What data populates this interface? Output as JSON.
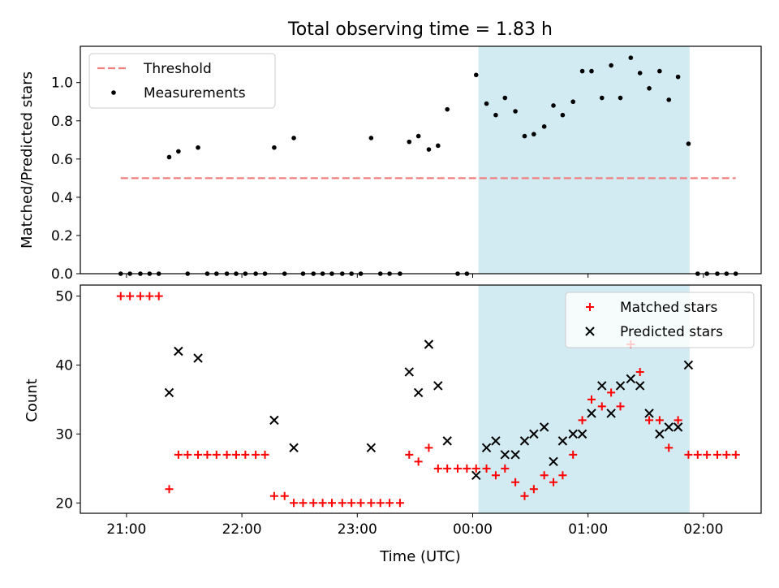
{
  "chart_data": {
    "title": "Total observing time = 1.83 h",
    "xlabel": "Time (UTC)",
    "x_ticks": [
      "21:00",
      "22:00",
      "23:00",
      "00:00",
      "01:00",
      "02:00"
    ],
    "x_range_hours": [
      20.6,
      26.5
    ],
    "highlight_span_hours": [
      24.05,
      25.88
    ],
    "highlight_color": "#add8e6",
    "panels": [
      {
        "type": "scatter",
        "ylabel": "Matched/Predicted stars",
        "ylim": [
          0,
          1.19
        ],
        "yticks": [
          0.0,
          0.2,
          0.4,
          0.6,
          0.8,
          1.0
        ],
        "legend": "top-left",
        "threshold": {
          "name": "Threshold",
          "value": 0.5,
          "x_start": 20.95,
          "x_end": 26.28,
          "color": "#f08080",
          "style": "dashed"
        },
        "series": [
          {
            "name": "Measurements",
            "color": "#000000",
            "marker": "dot",
            "points": [
              [
                20.95,
                0
              ],
              [
                21.03,
                0
              ],
              [
                21.12,
                0
              ],
              [
                21.2,
                0
              ],
              [
                21.28,
                0
              ],
              [
                21.37,
                0.61
              ],
              [
                21.45,
                0.64
              ],
              [
                21.53,
                0
              ],
              [
                21.62,
                0.66
              ],
              [
                21.7,
                0
              ],
              [
                21.78,
                0
              ],
              [
                21.87,
                0
              ],
              [
                21.95,
                0
              ],
              [
                22.03,
                0
              ],
              [
                22.12,
                0
              ],
              [
                22.2,
                0
              ],
              [
                22.28,
                0.66
              ],
              [
                22.37,
                0
              ],
              [
                22.45,
                0.71
              ],
              [
                22.53,
                0
              ],
              [
                22.62,
                0
              ],
              [
                22.7,
                0
              ],
              [
                22.78,
                0
              ],
              [
                22.87,
                0
              ],
              [
                22.95,
                0
              ],
              [
                23.03,
                0
              ],
              [
                23.12,
                0.71
              ],
              [
                23.2,
                0
              ],
              [
                23.28,
                0
              ],
              [
                23.37,
                0
              ],
              [
                23.45,
                0.69
              ],
              [
                23.53,
                0.72
              ],
              [
                23.62,
                0.65
              ],
              [
                23.7,
                0.67
              ],
              [
                23.78,
                0.86
              ],
              [
                23.87,
                0
              ],
              [
                23.95,
                0
              ],
              [
                24.03,
                1.04
              ],
              [
                24.12,
                0.89
              ],
              [
                24.2,
                0.83
              ],
              [
                24.28,
                0.92
              ],
              [
                24.37,
                0.85
              ],
              [
                24.45,
                0.72
              ],
              [
                24.53,
                0.73
              ],
              [
                24.62,
                0.77
              ],
              [
                24.7,
                0.88
              ],
              [
                24.78,
                0.83
              ],
              [
                24.87,
                0.9
              ],
              [
                24.95,
                1.06
              ],
              [
                25.03,
                1.06
              ],
              [
                25.12,
                0.92
              ],
              [
                25.2,
                1.09
              ],
              [
                25.28,
                0.92
              ],
              [
                25.37,
                1.13
              ],
              [
                25.45,
                1.05
              ],
              [
                25.53,
                0.97
              ],
              [
                25.62,
                1.06
              ],
              [
                25.7,
                0.91
              ],
              [
                25.78,
                1.03
              ],
              [
                25.87,
                0.68
              ],
              [
                25.95,
                0
              ],
              [
                26.03,
                0
              ],
              [
                26.12,
                0
              ],
              [
                26.2,
                0
              ],
              [
                26.28,
                0
              ]
            ]
          }
        ]
      },
      {
        "type": "scatter",
        "ylabel": "Count",
        "ylim": [
          18.5,
          51.6
        ],
        "yticks": [
          20,
          30,
          40,
          50
        ],
        "legend": "top-right",
        "series": [
          {
            "name": "Matched stars",
            "color": "#ff0000",
            "marker": "plus",
            "points": [
              [
                20.95,
                50
              ],
              [
                21.03,
                50
              ],
              [
                21.12,
                50
              ],
              [
                21.2,
                50
              ],
              [
                21.28,
                50
              ],
              [
                21.37,
                22
              ],
              [
                21.45,
                27
              ],
              [
                21.53,
                27
              ],
              [
                21.62,
                27
              ],
              [
                21.7,
                27
              ],
              [
                21.78,
                27
              ],
              [
                21.87,
                27
              ],
              [
                21.95,
                27
              ],
              [
                22.03,
                27
              ],
              [
                22.12,
                27
              ],
              [
                22.2,
                27
              ],
              [
                22.28,
                21
              ],
              [
                22.37,
                21
              ],
              [
                22.45,
                20
              ],
              [
                22.53,
                20
              ],
              [
                22.62,
                20
              ],
              [
                22.7,
                20
              ],
              [
                22.78,
                20
              ],
              [
                22.87,
                20
              ],
              [
                22.95,
                20
              ],
              [
                23.03,
                20
              ],
              [
                23.12,
                20
              ],
              [
                23.2,
                20
              ],
              [
                23.28,
                20
              ],
              [
                23.37,
                20
              ],
              [
                23.45,
                27
              ],
              [
                23.53,
                26
              ],
              [
                23.62,
                28
              ],
              [
                23.7,
                25
              ],
              [
                23.78,
                25
              ],
              [
                23.87,
                25
              ],
              [
                23.95,
                25
              ],
              [
                24.03,
                25
              ],
              [
                24.12,
                25
              ],
              [
                24.2,
                24
              ],
              [
                24.28,
                25
              ],
              [
                24.37,
                23
              ],
              [
                24.45,
                21
              ],
              [
                24.53,
                22
              ],
              [
                24.62,
                24
              ],
              [
                24.7,
                23
              ],
              [
                24.78,
                24
              ],
              [
                24.87,
                27
              ],
              [
                24.95,
                32
              ],
              [
                25.03,
                35
              ],
              [
                25.12,
                34
              ],
              [
                25.2,
                36
              ],
              [
                25.28,
                34
              ],
              [
                25.37,
                43
              ],
              [
                25.45,
                39
              ],
              [
                25.53,
                32
              ],
              [
                25.62,
                32
              ],
              [
                25.7,
                28
              ],
              [
                25.78,
                32
              ],
              [
                25.87,
                27
              ],
              [
                25.95,
                27
              ],
              [
                26.03,
                27
              ],
              [
                26.12,
                27
              ],
              [
                26.2,
                27
              ],
              [
                26.28,
                27
              ]
            ]
          },
          {
            "name": "Predicted stars",
            "color": "#000000",
            "marker": "x",
            "points": [
              [
                21.37,
                36
              ],
              [
                21.45,
                42
              ],
              [
                21.62,
                41
              ],
              [
                22.28,
                32
              ],
              [
                22.45,
                28
              ],
              [
                23.12,
                28
              ],
              [
                23.45,
                39
              ],
              [
                23.53,
                36
              ],
              [
                23.62,
                43
              ],
              [
                23.7,
                37
              ],
              [
                23.78,
                29
              ],
              [
                24.03,
                24
              ],
              [
                24.12,
                28
              ],
              [
                24.2,
                29
              ],
              [
                24.28,
                27
              ],
              [
                24.37,
                27
              ],
              [
                24.45,
                29
              ],
              [
                24.53,
                30
              ],
              [
                24.62,
                31
              ],
              [
                24.7,
                26
              ],
              [
                24.78,
                29
              ],
              [
                24.87,
                30
              ],
              [
                24.95,
                30
              ],
              [
                25.03,
                33
              ],
              [
                25.12,
                37
              ],
              [
                25.2,
                33
              ],
              [
                25.28,
                37
              ],
              [
                25.37,
                38
              ],
              [
                25.45,
                37
              ],
              [
                25.53,
                33
              ],
              [
                25.62,
                30
              ],
              [
                25.7,
                31
              ],
              [
                25.78,
                31
              ],
              [
                25.87,
                40
              ]
            ]
          }
        ]
      }
    ]
  }
}
